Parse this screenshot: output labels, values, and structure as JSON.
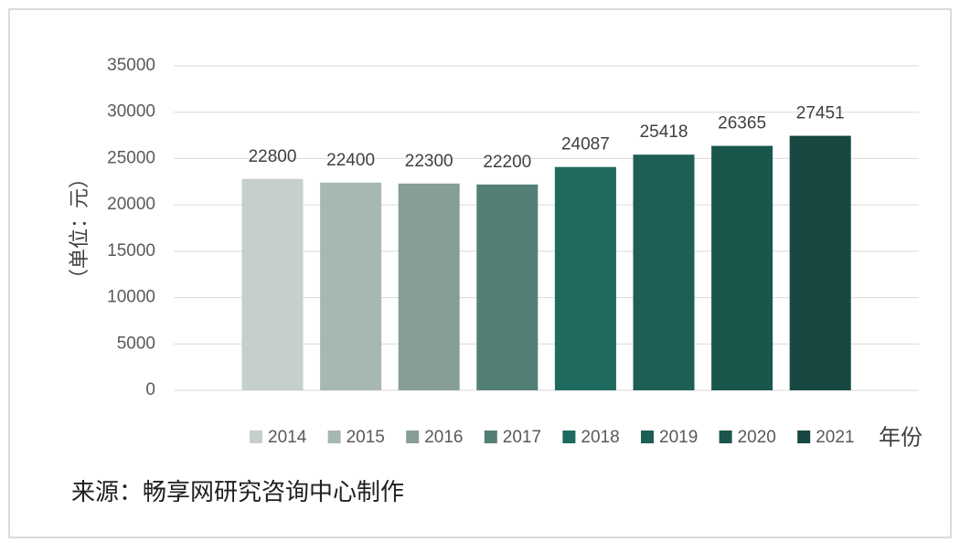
{
  "chart_data": {
    "type": "bar",
    "categories": [
      "2014",
      "2015",
      "2016",
      "2017",
      "2018",
      "2019",
      "2020",
      "2021"
    ],
    "values": [
      22800,
      22400,
      22300,
      22200,
      24087,
      25418,
      26365,
      27451
    ],
    "colors": [
      "#c5cfcc",
      "#a7b7b2",
      "#879d97",
      "#537f77",
      "#1f6a5e",
      "#1d5f55",
      "#1a564c",
      "#174841"
    ],
    "y_label": "（单位：元）",
    "x_label": "年份",
    "source": "来源：畅享网研究咨询中心制作",
    "ylim": [
      0,
      35000
    ],
    "yticks": [
      0,
      5000,
      10000,
      15000,
      20000,
      25000,
      30000,
      35000
    ],
    "grid": true,
    "legend": "bottom"
  }
}
